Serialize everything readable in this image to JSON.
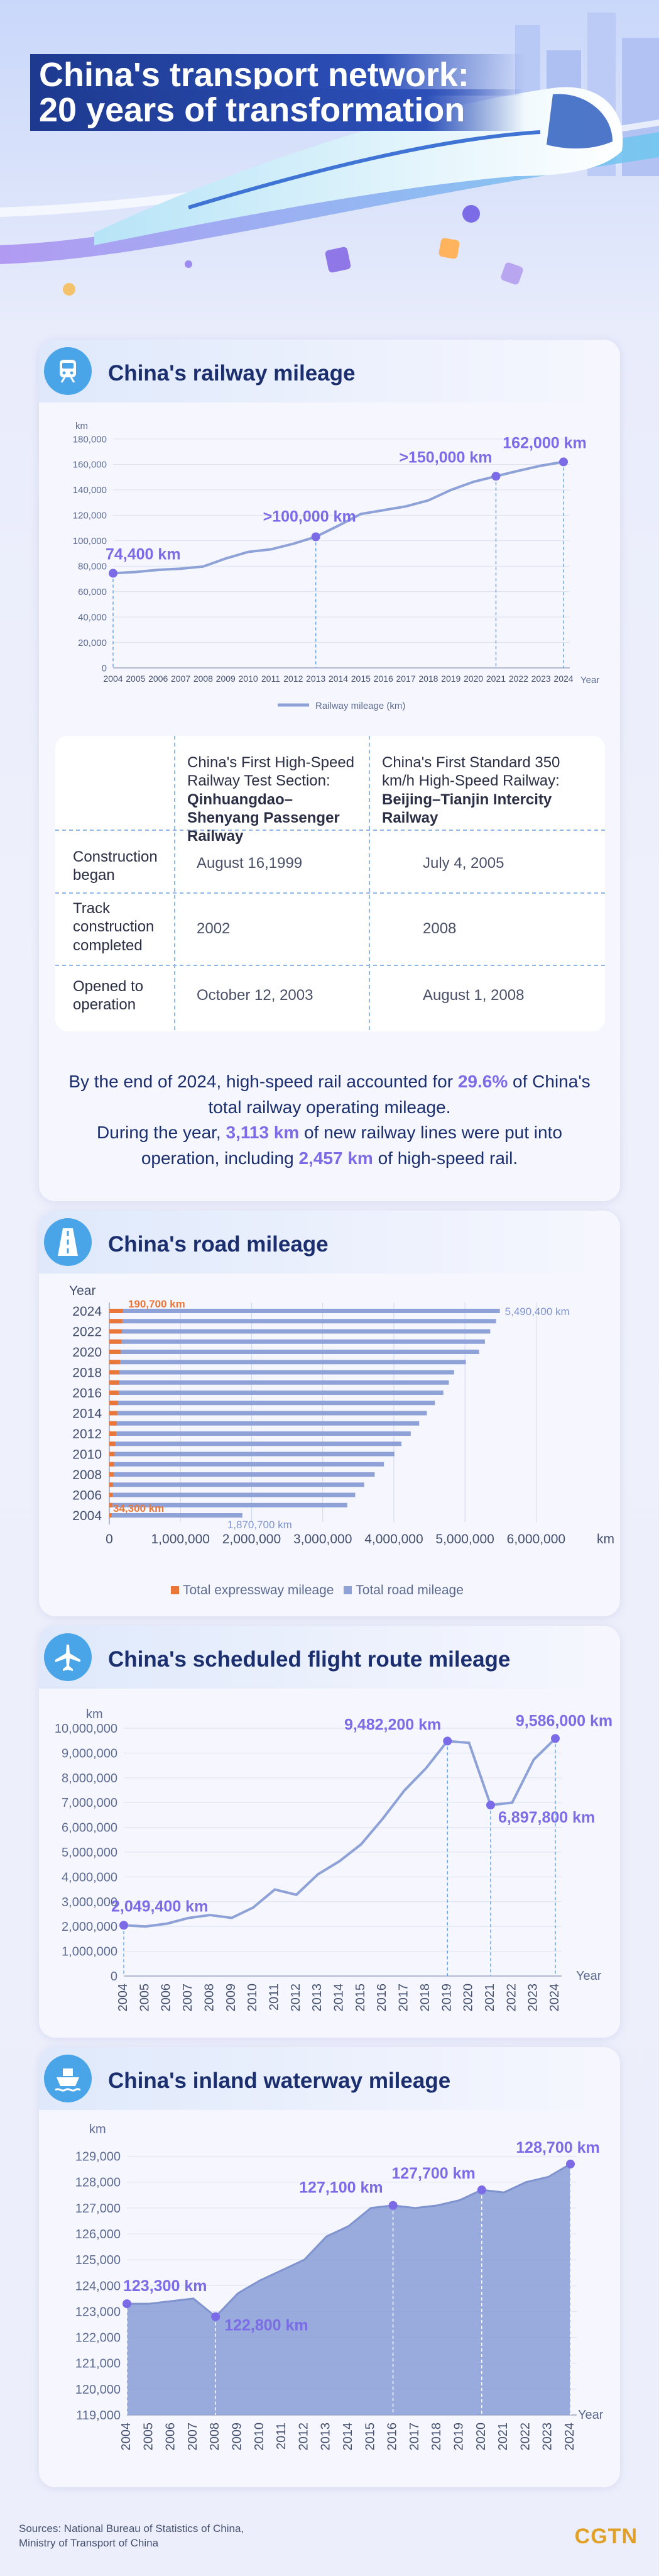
{
  "header": {
    "title_line1": "China's transport network:",
    "title_line2": "20 years of transformation"
  },
  "railway": {
    "section_title": "China's railway mileage",
    "icon": "train-icon",
    "chart_data": {
      "type": "line",
      "ylabel": "km",
      "xlabel": "Year",
      "x": [
        2004,
        2005,
        2006,
        2007,
        2008,
        2009,
        2010,
        2011,
        2012,
        2013,
        2014,
        2015,
        2016,
        2017,
        2018,
        2019,
        2020,
        2021,
        2022,
        2023,
        2024
      ],
      "series": [
        {
          "name": "Railway mileage (km)",
          "values": [
            74400,
            75400,
            77100,
            78000,
            79700,
            86000,
            91200,
            93200,
            97600,
            103100,
            111800,
            121000,
            124000,
            127000,
            131700,
            139900,
            146300,
            150700,
            155000,
            159000,
            162000
          ]
        }
      ],
      "ylim": [
        0,
        180000
      ],
      "yticks": [
        "0",
        "20,000",
        "40,000",
        "60,000",
        "80,000",
        "100,000",
        "120,000",
        "140,000",
        "160,000",
        "180,000"
      ],
      "annotations": [
        {
          "x": 2004,
          "y": 74400,
          "label": "74,400 km"
        },
        {
          "x": 2013,
          "y": 103100,
          "label": ">100,000 km"
        },
        {
          "x": 2021,
          "y": 150700,
          "label": ">150,000 km"
        },
        {
          "x": 2024,
          "y": 162000,
          "label": "162,000 km"
        }
      ],
      "legend": "Railway mileage (km)"
    },
    "table": {
      "col1_head": "China's First High-Speed Railway Test Section:",
      "col1_bold": "Qinhuangdao–Shenyang Passenger Railway",
      "col2_head": "China's First Standard 350 km/h High-Speed Railway:",
      "col2_bold": "Beijing–Tianjin Intercity Railway",
      "rows": [
        {
          "label": "Construction began",
          "v1": "August 16,1999",
          "v2": "July 4, 2005"
        },
        {
          "label": "Track construction completed",
          "v1": "2002",
          "v2": "2008"
        },
        {
          "label": "Opened to operation",
          "v1": "October 12, 2003",
          "v2": "August 1, 2008"
        }
      ]
    },
    "summary": {
      "p1": "By the end of 2024, high-speed rail accounted for ",
      "h1": "29.6%",
      "p2": " of China's total railway operating mileage.",
      "p3": "During the year, ",
      "h2": "3,113 km",
      "p4": " of new railway lines were put into operation, including ",
      "h3": "2,457 km",
      "p5": " of high-speed rail."
    }
  },
  "road": {
    "section_title": "China's road mileage",
    "icon": "road-icon",
    "chart_data": {
      "type": "bar",
      "orientation": "horizontal",
      "ylabel": "Year",
      "xlabel": "km",
      "categories": [
        2004,
        2005,
        2006,
        2007,
        2008,
        2009,
        2010,
        2011,
        2012,
        2013,
        2014,
        2015,
        2016,
        2017,
        2018,
        2019,
        2020,
        2021,
        2022,
        2023,
        2024
      ],
      "series": [
        {
          "name": "Total road mileage",
          "values": [
            1870700,
            3345200,
            3457000,
            3583700,
            3730200,
            3860800,
            4008200,
            4106400,
            4237500,
            4356200,
            4463900,
            4577300,
            4696300,
            4773500,
            4846500,
            5012500,
            5198100,
            5280700,
            5354800,
            5436800,
            5490400
          ]
        },
        {
          "name": "Total expressway mileage",
          "values": [
            34300,
            41000,
            45300,
            53900,
            60300,
            65100,
            74100,
            84900,
            96200,
            104400,
            111900,
            123500,
            131000,
            136500,
            142600,
            149600,
            161000,
            169100,
            177300,
            183600,
            190700
          ]
        }
      ],
      "xlim": [
        0,
        6500000
      ],
      "xticks": [
        "0",
        "1,000,000",
        "2,000,000",
        "3,000,000",
        "4,000,000",
        "5,000,000",
        "6,000,000"
      ],
      "yticks": [
        "2024",
        "2022",
        "2020",
        "2018",
        "2016",
        "2014",
        "2012",
        "2010",
        "2008",
        "2006",
        "2004"
      ],
      "annotations": [
        {
          "label": "190,700 km"
        },
        {
          "label": "5,490,400 km"
        },
        {
          "label": "34,300 km"
        },
        {
          "label": "1,870,700 km"
        }
      ],
      "legend": [
        "Total expressway mileage",
        "Total road mileage"
      ],
      "colors": {
        "total": "#8ea2d8",
        "expressway": "#e9773a"
      }
    }
  },
  "flight": {
    "section_title": "China's scheduled flight route mileage",
    "icon": "airplane-icon",
    "chart_data": {
      "type": "line",
      "ylabel": "km",
      "xlabel": "Year",
      "x": [
        2004,
        2005,
        2006,
        2007,
        2008,
        2009,
        2010,
        2011,
        2012,
        2013,
        2014,
        2015,
        2016,
        2017,
        2018,
        2019,
        2020,
        2021,
        2022,
        2023,
        2024
      ],
      "series": [
        {
          "name": "Scheduled flight route mileage",
          "values": [
            2049400,
            1998500,
            2113500,
            2342900,
            2461800,
            2345100,
            2765100,
            3490600,
            3280100,
            4106000,
            4637200,
            5317200,
            6348100,
            7482800,
            8379800,
            9482200,
            9409700,
            6897800,
            6999000,
            8734100,
            9586000
          ]
        }
      ],
      "ylim": [
        0,
        10000000
      ],
      "yticks": [
        "0",
        "1,000,000",
        "2,000,000",
        "3,000,000",
        "4,000,000",
        "5,000,000",
        "6,000,000",
        "7,000,000",
        "8,000,000",
        "9,000,000",
        "10,000,000"
      ],
      "annotations": [
        {
          "x": 2004,
          "y": 2049400,
          "label": "2,049,400 km"
        },
        {
          "x": 2019,
          "y": 9482200,
          "label": "9,482,200 km"
        },
        {
          "x": 2021,
          "y": 6897800,
          "label": "6,897,800 km"
        },
        {
          "x": 2024,
          "y": 9586000,
          "label": "9,586,000 km"
        }
      ]
    }
  },
  "waterway": {
    "section_title": "China's inland waterway mileage",
    "icon": "ship-icon",
    "chart_data": {
      "type": "area",
      "ylabel": "km",
      "xlabel": "Year",
      "x": [
        2004,
        2005,
        2006,
        2007,
        2008,
        2009,
        2010,
        2011,
        2012,
        2013,
        2014,
        2015,
        2016,
        2017,
        2018,
        2019,
        2020,
        2021,
        2022,
        2023,
        2024
      ],
      "series": [
        {
          "name": "Inland waterway mileage",
          "values": [
            123300,
            123300,
            123400,
            123500,
            122800,
            123700,
            124200,
            124600,
            125000,
            125900,
            126300,
            127000,
            127100,
            127000,
            127100,
            127300,
            127700,
            127600,
            128000,
            128200,
            128700
          ]
        }
      ],
      "ylim": [
        119000,
        129500
      ],
      "yticks": [
        "119,000",
        "120,000",
        "121,000",
        "122,000",
        "123,000",
        "124,000",
        "125,000",
        "126,000",
        "127,000",
        "128,000",
        "129,000"
      ],
      "annotations": [
        {
          "x": 2004,
          "y": 123300,
          "label": "123,300 km"
        },
        {
          "x": 2008,
          "y": 122800,
          "label": "122,800 km"
        },
        {
          "x": 2016,
          "y": 127100,
          "label": "127,100 km"
        },
        {
          "x": 2020,
          "y": 127700,
          "label": "127,700 km"
        },
        {
          "x": 2024,
          "y": 128700,
          "label": "128,700 km"
        }
      ]
    }
  },
  "footer": {
    "sources_line1": "Sources: National Bureau of Statistics of China,",
    "sources_line2": "Ministry of Transport of China",
    "logo": "CGTN"
  },
  "colors": {
    "accent": "#7b6be6",
    "navy": "#1b2e6e",
    "line": "#8ea2d8",
    "icon_bg": "#4aa5e8"
  }
}
